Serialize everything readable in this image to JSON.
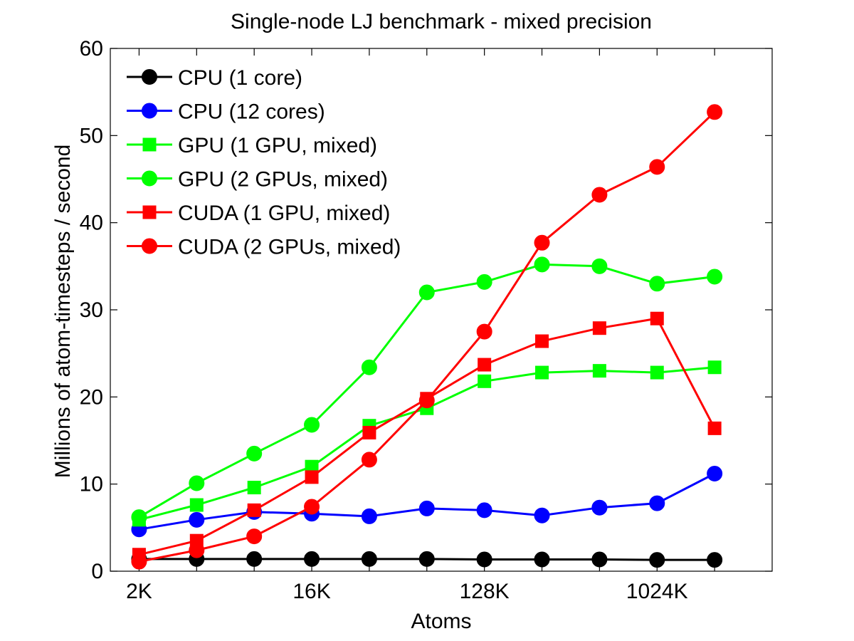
{
  "chart_data": {
    "type": "line",
    "title": "Single-node LJ benchmark - mixed precision",
    "xlabel": "Atoms",
    "ylabel": "Millions of atom-timesteps / second",
    "ylim": [
      0,
      60
    ],
    "yticks": [
      0,
      10,
      20,
      30,
      40,
      50,
      60
    ],
    "x": [
      2048,
      4096,
      8192,
      16384,
      32768,
      65536,
      131072,
      262144,
      524288,
      1048576,
      2097152
    ],
    "xlim_log2": [
      10.5,
      22
    ],
    "xticks": [
      {
        "value": 2048,
        "label": "2K"
      },
      {
        "value": 16384,
        "label": "16K"
      },
      {
        "value": 131072,
        "label": "128K"
      },
      {
        "value": 1048576,
        "label": "1024K"
      }
    ],
    "legend_position": "top-left",
    "grid": false,
    "series": [
      {
        "name": "CPU (1 core)",
        "color": "#000000",
        "marker": "circle",
        "values": [
          1.4,
          1.4,
          1.4,
          1.4,
          1.4,
          1.4,
          1.35,
          1.35,
          1.35,
          1.3,
          1.3
        ]
      },
      {
        "name": "CPU (12 cores)",
        "color": "#0000ff",
        "marker": "circle",
        "values": [
          4.8,
          5.9,
          6.8,
          6.6,
          6.3,
          7.2,
          7.0,
          6.4,
          7.3,
          7.8,
          11.2
        ]
      },
      {
        "name": "GPU (1 GPU, mixed)",
        "color": "#00ff00",
        "marker": "square",
        "values": [
          5.9,
          7.6,
          9.6,
          12.0,
          16.7,
          18.7,
          21.8,
          22.8,
          23.0,
          22.8,
          23.4
        ]
      },
      {
        "name": "GPU (2 GPUs, mixed)",
        "color": "#00ff00",
        "marker": "circle",
        "values": [
          6.2,
          10.1,
          13.5,
          16.8,
          23.4,
          32.0,
          33.2,
          35.2,
          35.0,
          33.0,
          33.8
        ]
      },
      {
        "name": "CUDA (1 GPU, mixed)",
        "color": "#ff0000",
        "marker": "square",
        "values": [
          1.9,
          3.5,
          7.0,
          10.8,
          15.9,
          19.8,
          23.7,
          26.4,
          27.9,
          29.0,
          16.4
        ]
      },
      {
        "name": "CUDA (2 GPUs, mixed)",
        "color": "#ff0000",
        "marker": "circle",
        "values": [
          1.1,
          2.4,
          4.0,
          7.4,
          12.8,
          19.6,
          27.5,
          37.7,
          43.2,
          46.4,
          52.7
        ]
      }
    ]
  }
}
